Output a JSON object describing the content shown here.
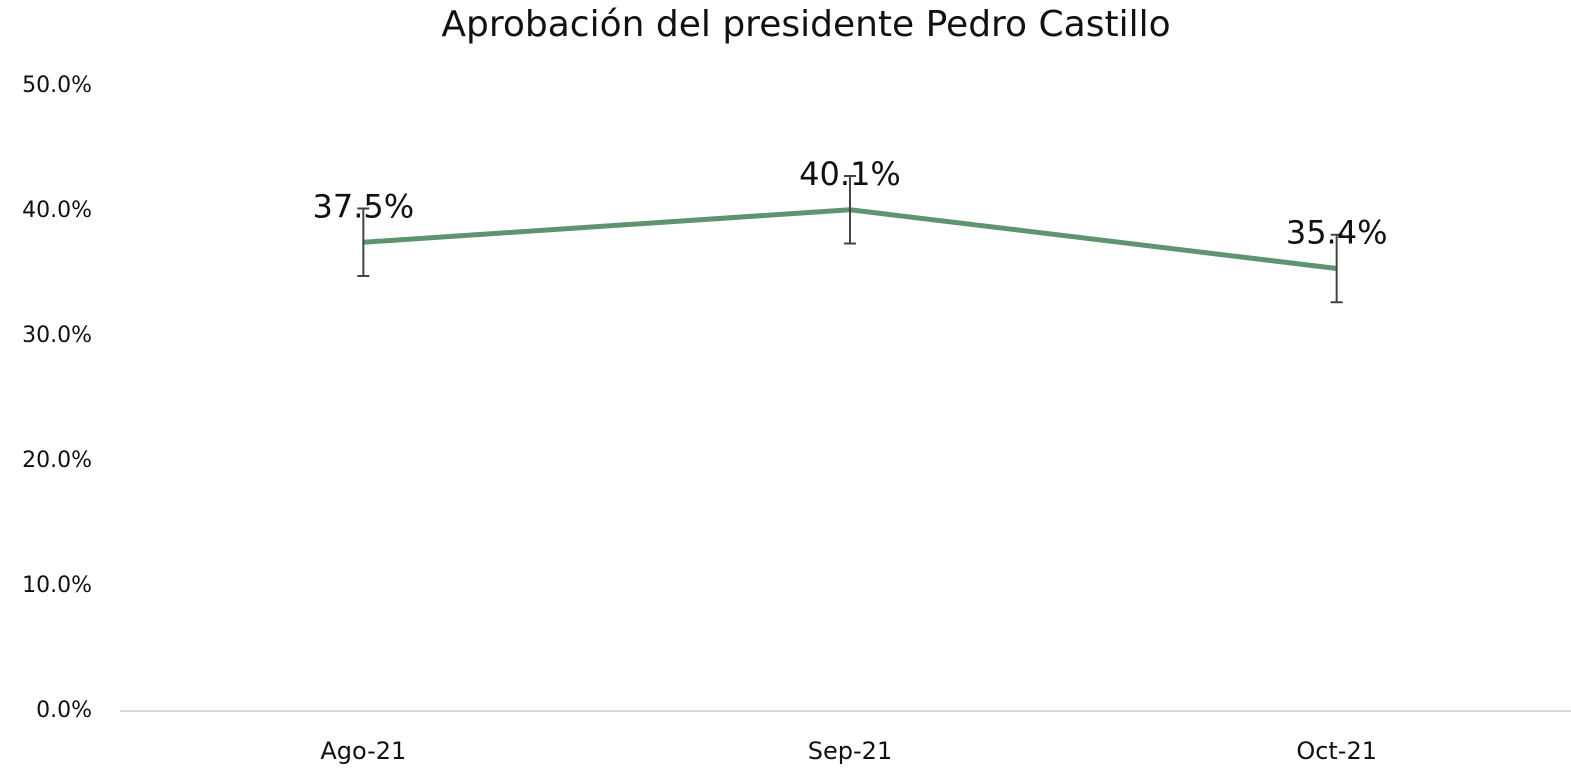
{
  "chart_data": {
    "type": "line",
    "title": "Aprobación del presidente Pedro Castillo",
    "categories": [
      "Ago-21",
      "Sep-21",
      "Oct-21"
    ],
    "values": [
      37.5,
      40.1,
      35.4
    ],
    "value_labels": [
      "37.5%",
      "40.1%",
      "35.4%"
    ],
    "errors": [
      2.7,
      2.7,
      2.7
    ],
    "color": "#5f9470",
    "ylim": [
      0,
      50
    ],
    "yticks": [
      {
        "value": 0,
        "label": "0.0%"
      },
      {
        "value": 10,
        "label": "10.0%"
      },
      {
        "value": 20,
        "label": "20.0%"
      },
      {
        "value": 30,
        "label": "30.0%"
      },
      {
        "value": 40,
        "label": "40.0%"
      },
      {
        "value": 50,
        "label": "50.0%"
      }
    ],
    "grid": false
  }
}
